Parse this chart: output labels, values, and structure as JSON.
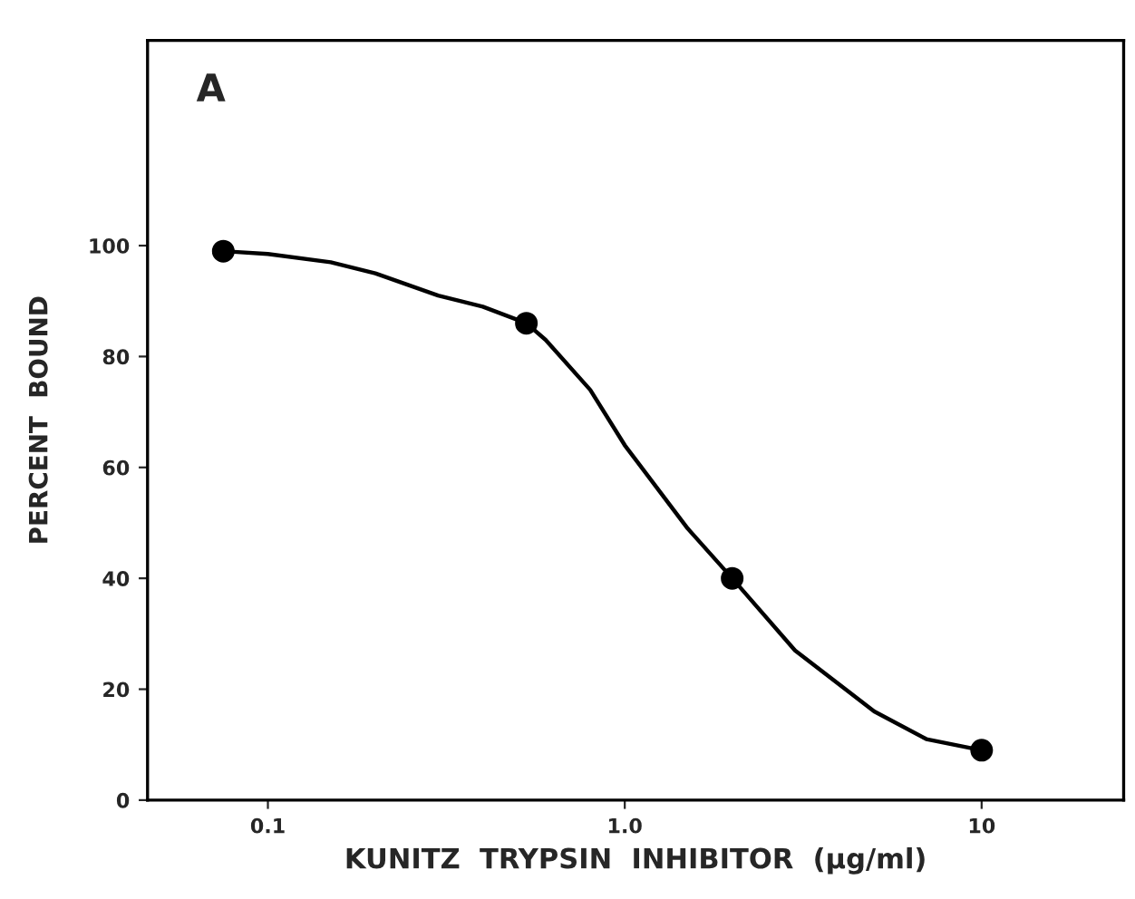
{
  "chart_data": {
    "type": "scatter",
    "xlabel": "KUNITZ  TRYPSIN  INHIBITOR  (µg/ml)",
    "ylabel": "PERCENT  BOUND",
    "annotations": [
      "A"
    ],
    "series": [
      {
        "color": "#000000",
        "marker": "circle",
        "x": [
          0.075,
          0.53,
          2.0,
          10
        ],
        "values": [
          99,
          86,
          40,
          9
        ]
      },
      {
        "type": "line",
        "marker": "none",
        "color": "#000000",
        "x": [
          0.075,
          0.1,
          0.15,
          0.2,
          0.3,
          0.4,
          0.53,
          0.6,
          0.8,
          1.0,
          1.5,
          2.0,
          3.0,
          5.0,
          7.0,
          10
        ],
        "values": [
          99,
          98.5,
          97,
          95,
          91,
          89,
          86,
          83,
          74,
          64,
          49,
          40,
          27,
          16,
          11,
          9
        ]
      }
    ],
    "log": "x",
    "xlim": [
      0.046,
      25
    ],
    "xticks": [
      {
        "value": 0.1,
        "label": "0.1"
      },
      {
        "value": 1,
        "label": "1.0"
      },
      10
    ],
    "ylim": [
      0,
      137
    ],
    "yticks": [
      0,
      20,
      40,
      60,
      80,
      100
    ],
    "grid": false,
    "line_style": "solid"
  }
}
